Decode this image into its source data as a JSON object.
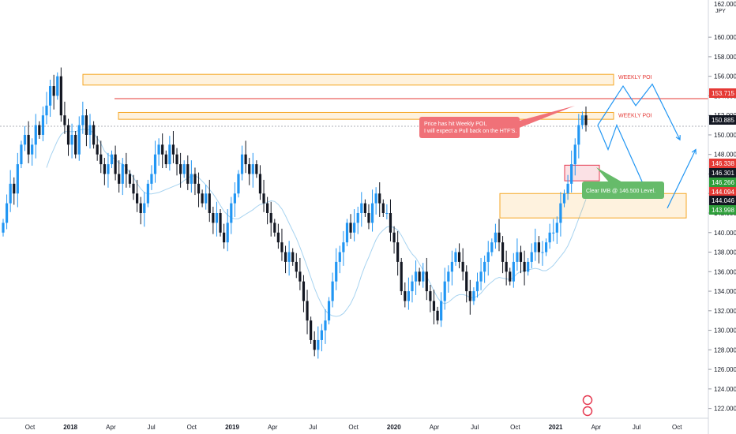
{
  "chart_data": {
    "type": "candlestick",
    "currency": "JPY",
    "top_price_label": "162.000",
    "y_ticks": [
      122,
      124,
      126,
      128,
      130,
      132,
      134,
      136,
      138,
      140,
      142,
      144,
      146,
      148,
      150,
      152,
      154,
      156,
      158,
      160
    ],
    "y_tick_labels": [
      "122.000",
      "124.000",
      "126.000",
      "128.000",
      "130.000",
      "132.000",
      "134.000",
      "136.000",
      "138.000",
      "140.000",
      "142.000",
      "144.000",
      "146.000",
      "148.000",
      "150.000",
      "152.000",
      "154.000",
      "156.000",
      "158.000",
      "160.000"
    ],
    "ylim": [
      121.0,
      163.0
    ],
    "x_labels": [
      "Oct",
      "2018",
      "Apr",
      "Jul",
      "Oct",
      "2019",
      "Apr",
      "Jul",
      "Oct",
      "2020",
      "Apr",
      "Jul",
      "Oct",
      "2021",
      "Apr",
      "Jul",
      "Oct"
    ],
    "x_label_bold": [
      false,
      true,
      false,
      false,
      false,
      true,
      false,
      false,
      false,
      true,
      false,
      false,
      false,
      true,
      false,
      false,
      false
    ],
    "close_series": [
      141,
      143,
      145,
      144,
      147,
      149,
      150,
      148,
      149,
      151,
      150,
      152,
      153,
      155,
      154,
      156,
      152,
      151,
      149,
      150,
      148,
      151,
      152,
      150,
      151,
      149,
      148,
      147,
      146,
      147,
      148,
      146,
      145,
      147,
      146,
      145,
      144,
      143,
      142,
      143,
      145,
      146,
      148,
      149,
      148,
      147,
      149,
      148,
      147,
      146,
      147,
      145,
      146,
      145,
      144,
      143,
      144,
      142,
      141,
      142,
      140,
      139,
      141,
      143,
      144,
      146,
      148,
      147,
      146,
      147,
      146,
      144,
      143,
      142,
      141,
      140,
      139,
      138,
      137,
      138,
      137,
      136,
      135,
      133,
      131,
      129,
      128,
      129,
      130,
      131,
      133,
      135,
      137,
      138,
      139,
      141,
      140,
      141,
      142,
      143,
      142,
      141,
      143,
      144,
      143,
      142,
      142,
      140,
      139,
      137,
      134,
      133,
      134,
      135,
      136,
      135,
      136,
      134,
      133,
      132,
      131,
      133,
      135,
      136,
      137,
      138,
      137,
      136,
      134,
      133,
      134,
      135,
      136,
      137,
      138,
      139,
      140,
      139,
      137,
      136,
      135,
      137,
      138,
      137,
      136,
      137,
      138,
      139,
      138,
      138,
      139,
      140,
      140,
      141,
      143,
      144,
      145,
      147,
      149,
      151,
      152,
      151
    ],
    "high_series_note": "",
    "price_labels": [
      {
        "text": "153.715",
        "value": 153.715,
        "color": "#e53935"
      },
      {
        "text": "150.885",
        "value": 150.885,
        "color": "#131722"
      },
      {
        "text": "146.338",
        "value": 146.338,
        "color": "#e53935"
      },
      {
        "text": "146.301",
        "value": 146.301,
        "color": "#131722"
      },
      {
        "text": "146.266",
        "value": 146.266,
        "color": "#2e9e3a"
      },
      {
        "text": "144.094",
        "value": 144.094,
        "color": "#e53935"
      },
      {
        "text": "144.046",
        "value": 144.046,
        "color": "#131722"
      },
      {
        "text": "143.998",
        "value": 143.998,
        "color": "#2e9e3a"
      }
    ],
    "zones": [
      {
        "label": "WEEKLY POI",
        "top": 156.2,
        "bottom": 155.1,
        "color": "#f5a623"
      },
      {
        "label": "WEEKLY POI",
        "top": 152.3,
        "bottom": 151.6,
        "color": "#f5a623"
      },
      {
        "label": "",
        "top": 144.0,
        "bottom": 141.5,
        "color": "#f5a623"
      },
      {
        "label": "",
        "top": 146.9,
        "bottom": 145.3,
        "color": "#e53950"
      }
    ],
    "resistance_line": 153.715,
    "current_price_line": 150.885,
    "annotations": [
      {
        "text": "Price has hit Weekly POI,\nI will expect a Pull back on the HTF'S.",
        "color": "#f07178"
      },
      {
        "text": "Clear IMB @ 146.500 Level.",
        "color": "#66bb6a"
      }
    ]
  },
  "colors": {
    "bull": "#2196f3",
    "bear": "#131722",
    "zone_orange": "#f5a623",
    "zone_red": "#e53950",
    "resistance": "#e53935",
    "projection": "#2196f3",
    "ma": "#a7d3f0"
  }
}
